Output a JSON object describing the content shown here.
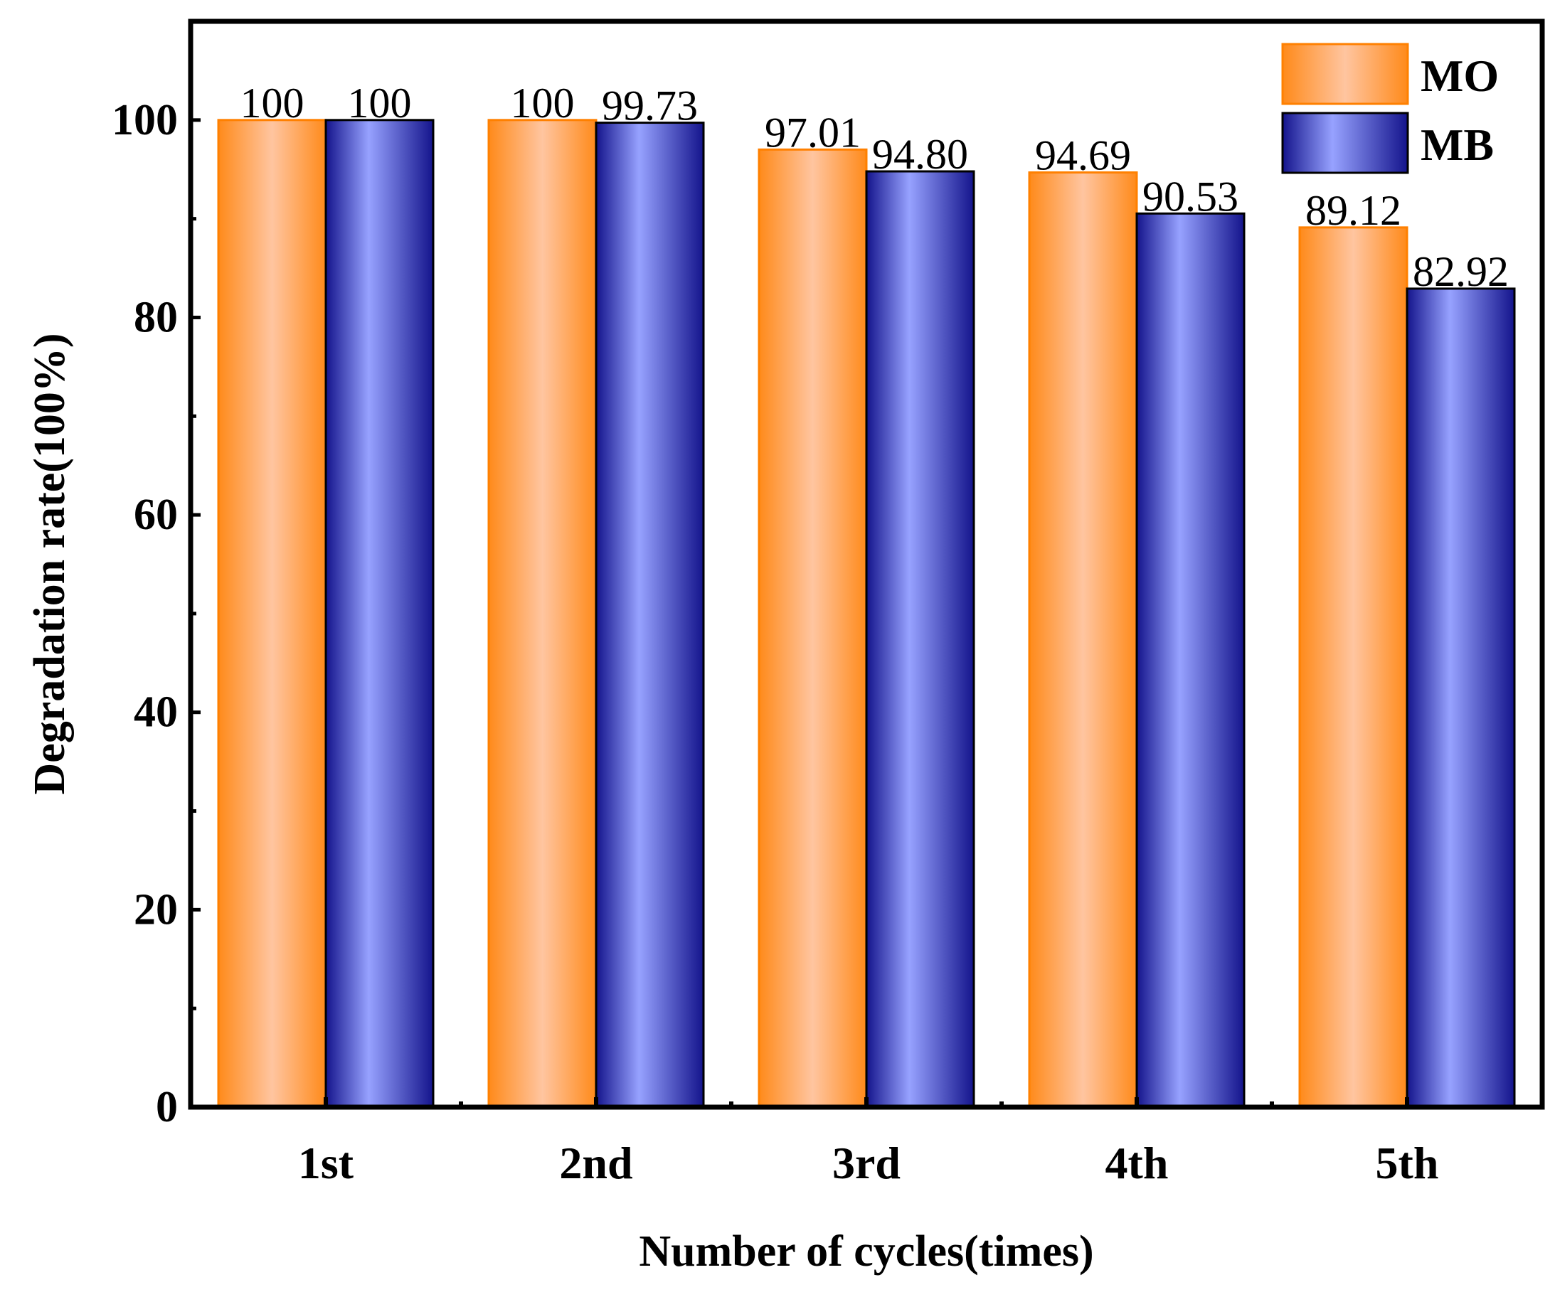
{
  "chart_data": {
    "type": "bar",
    "title": "",
    "xlabel": "Number of cycles(times)",
    "ylabel": "Degradation rate(100%)",
    "categories": [
      "1st",
      "2nd",
      "3rd",
      "4th",
      "5th"
    ],
    "series": [
      {
        "name": "MO",
        "values": [
          100,
          100,
          97.01,
          94.69,
          89.12
        ],
        "labels": [
          "100",
          "100",
          "97.01",
          "94.69",
          "89.12"
        ],
        "color_edge": "#ff8000",
        "color_light": "#ffc5a0",
        "color_dark": "#ff8a1a"
      },
      {
        "name": "MB",
        "values": [
          100,
          99.73,
          94.8,
          90.53,
          82.92
        ],
        "labels": [
          "100",
          "99.73",
          "94.80",
          "90.53",
          "82.92"
        ],
        "color_edge": "#000000",
        "color_light": "#97a2ff",
        "color_dark": "#14148c"
      }
    ],
    "ylim": [
      0,
      110
    ],
    "yticks": [
      0,
      20,
      40,
      60,
      80,
      100
    ],
    "grid": false,
    "legend": "top-right"
  }
}
